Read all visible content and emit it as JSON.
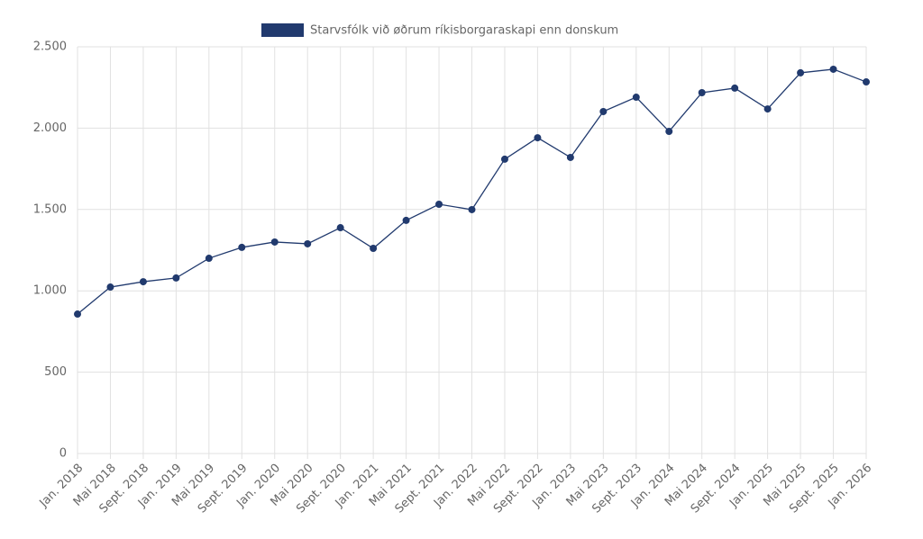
{
  "chart_data": {
    "type": "line",
    "categories": [
      "Jan. 2018",
      "Mai 2018",
      "Sept. 2018",
      "Jan. 2019",
      "Mai 2019",
      "Sept. 2019",
      "Jan. 2020",
      "Mai 2020",
      "Sept. 2020",
      "Jan. 2021",
      "Mai 2021",
      "Sept. 2021",
      "Jan. 2022",
      "Mai 2022",
      "Sept. 2022",
      "Jan. 2023",
      "Mai 2023",
      "Sept. 2023",
      "Jan. 2024",
      "Mai 2024",
      "Sept. 2024",
      "Jan. 2025",
      "Mai 2025",
      "Sept. 2025",
      "Jan. 2026"
    ],
    "series": [
      {
        "name": "Starvsfólk við øðrum ríkisborgaraskapi enn donskum",
        "color": "#213a6e",
        "values": [
          857,
          1023,
          1056,
          1079,
          1200,
          1267,
          1300,
          1289,
          1388,
          1261,
          1433,
          1532,
          1499,
          1809,
          1941,
          1820,
          2102,
          2190,
          1980,
          2218,
          2246,
          2118,
          2340,
          2362,
          2284
        ]
      }
    ],
    "ylim": [
      0,
      2500
    ],
    "yticks": [
      0,
      500,
      {
        "value": 1000,
        "label": "1.000"
      },
      {
        "value": 1500,
        "label": "1.500"
      },
      {
        "value": 2000,
        "label": "2.000"
      },
      {
        "value": 2500,
        "label": "2.500"
      }
    ],
    "grid": true,
    "legend": "top"
  }
}
